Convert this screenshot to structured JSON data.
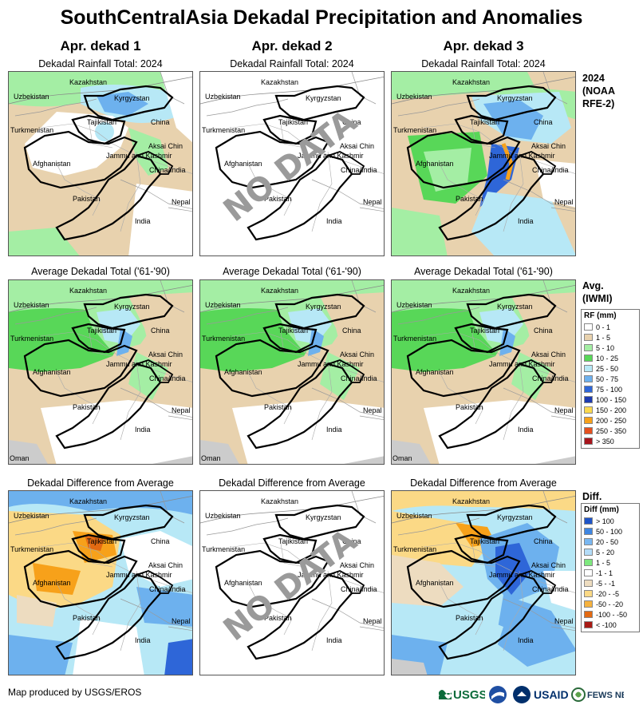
{
  "title": "SouthCentralAsia Dekadal Precipitation and Anomalies",
  "columns": [
    "Apr. dekad 1",
    "Apr. dekad 2",
    "Apr. dekad 3"
  ],
  "row_titles": {
    "rainfall": "Dekadal Rainfall Total: 2024",
    "average": "Average Dekadal Total ('61-'90)",
    "difference": "Dekadal Difference from Average"
  },
  "side_labels": {
    "rainfall": [
      "2024",
      "(NOAA",
      "RFE-2)"
    ],
    "average": [
      "Avg.",
      "(IWMI)"
    ],
    "difference": [
      "Diff."
    ]
  },
  "map_labels": {
    "kazakhstan": "Kazakhstan",
    "uzbekistan": "Uzbekistan",
    "kyrgyzstan": "Kyrgyzstan",
    "tajikistan": "Tajikistan",
    "turkmenistan": "Turkmenistan",
    "china": "China",
    "aksai_chin": "Aksai Chin",
    "jammu_kashmir": "Jammu and Kashmir",
    "china_india": "China/India",
    "afghanistan": "Afghanistan",
    "pakistan": "Pakistan",
    "nepal": "Nepal",
    "india": "India",
    "oman": "Oman"
  },
  "no_data_text": "NO DATA",
  "legend_rf": {
    "title": "RF (mm)",
    "items": [
      {
        "label": "0 - 1",
        "color": "#ffffff"
      },
      {
        "label": "1 - 5",
        "color": "#e8d2ae"
      },
      {
        "label": "5 - 10",
        "color": "#a4eea4"
      },
      {
        "label": "10 - 25",
        "color": "#58d758"
      },
      {
        "label": "25 - 50",
        "color": "#b7e8f6"
      },
      {
        "label": "50 - 75",
        "color": "#6db1ee"
      },
      {
        "label": "75 - 100",
        "color": "#2e66d8"
      },
      {
        "label": "100 - 150",
        "color": "#1d3bb0"
      },
      {
        "label": "150 - 200",
        "color": "#fcd94e"
      },
      {
        "label": "200 - 250",
        "color": "#f7a11a"
      },
      {
        "label": "250 - 350",
        "color": "#e5501e"
      },
      {
        "label": "> 350",
        "color": "#a8141c"
      }
    ]
  },
  "legend_diff": {
    "title": "Diff (mm)",
    "items": [
      {
        "label": "> 100",
        "color": "#1e54c8"
      },
      {
        "label": "50 - 100",
        "color": "#3f86e2"
      },
      {
        "label": "20 - 50",
        "color": "#7ab7f1"
      },
      {
        "label": "5 - 20",
        "color": "#b3dcf8"
      },
      {
        "label": "1 - 5",
        "color": "#7ee87e"
      },
      {
        "label": "-1 - 1",
        "color": "#ffffff"
      },
      {
        "label": "-5 - -1",
        "color": "#eddcc0"
      },
      {
        "label": "-20 - -5",
        "color": "#fbd986"
      },
      {
        "label": "-50 - -20",
        "color": "#f6b23e"
      },
      {
        "label": "-100 - -50",
        "color": "#e36a12"
      },
      {
        "label": "< -100",
        "color": "#a81a14"
      }
    ]
  },
  "credit": "Map produced by USGS/EROS",
  "logos": {
    "usgs": "USGS",
    "usaid": "USAID",
    "fewsnet": "FEWS NET"
  }
}
